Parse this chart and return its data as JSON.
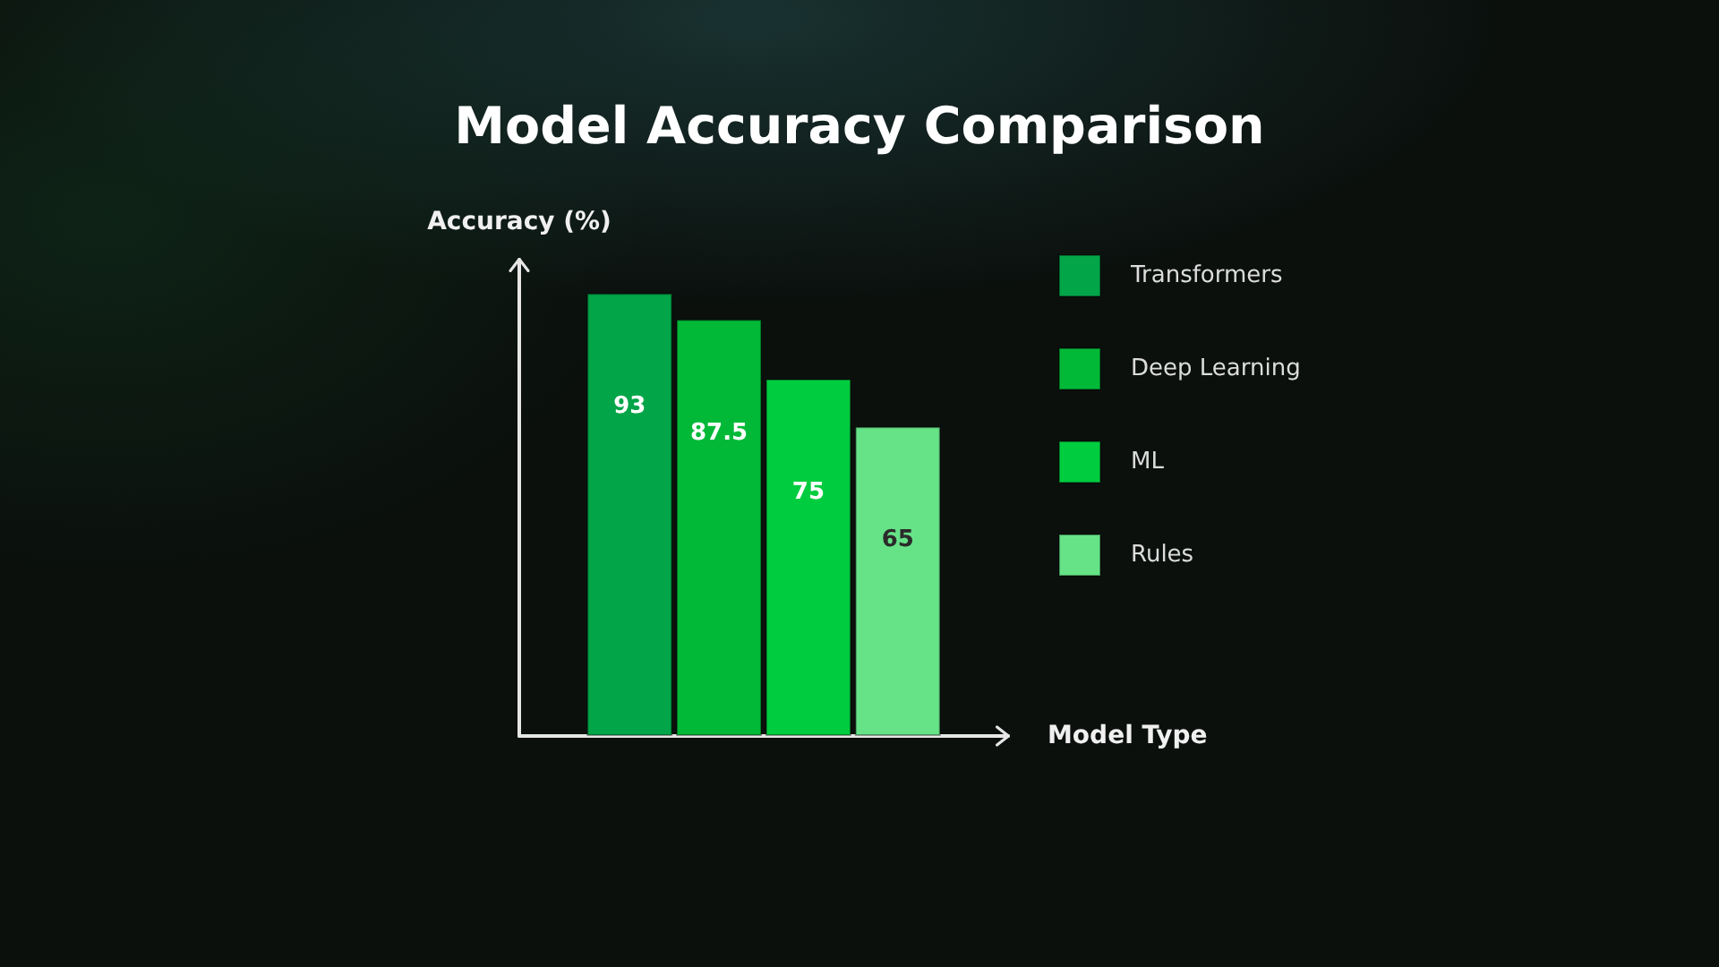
{
  "chart_data": {
    "type": "bar",
    "title": "Model Accuracy Comparison",
    "xlabel": "Model Type",
    "ylabel": "Accuracy (%)",
    "categories": [
      null
    ],
    "series": [
      {
        "name": "Transformers",
        "color": "#02a548",
        "values": [
          93
        ]
      },
      {
        "name": "Deep Learning",
        "color": "#01b937",
        "values": [
          87.5
        ]
      },
      {
        "name": "ML",
        "color": "#00cc3f",
        "values": [
          75
        ]
      },
      {
        "name": "Rules",
        "color": "#66e287",
        "values": [
          65
        ]
      }
    ],
    "data_labels": true,
    "legend": "right"
  }
}
